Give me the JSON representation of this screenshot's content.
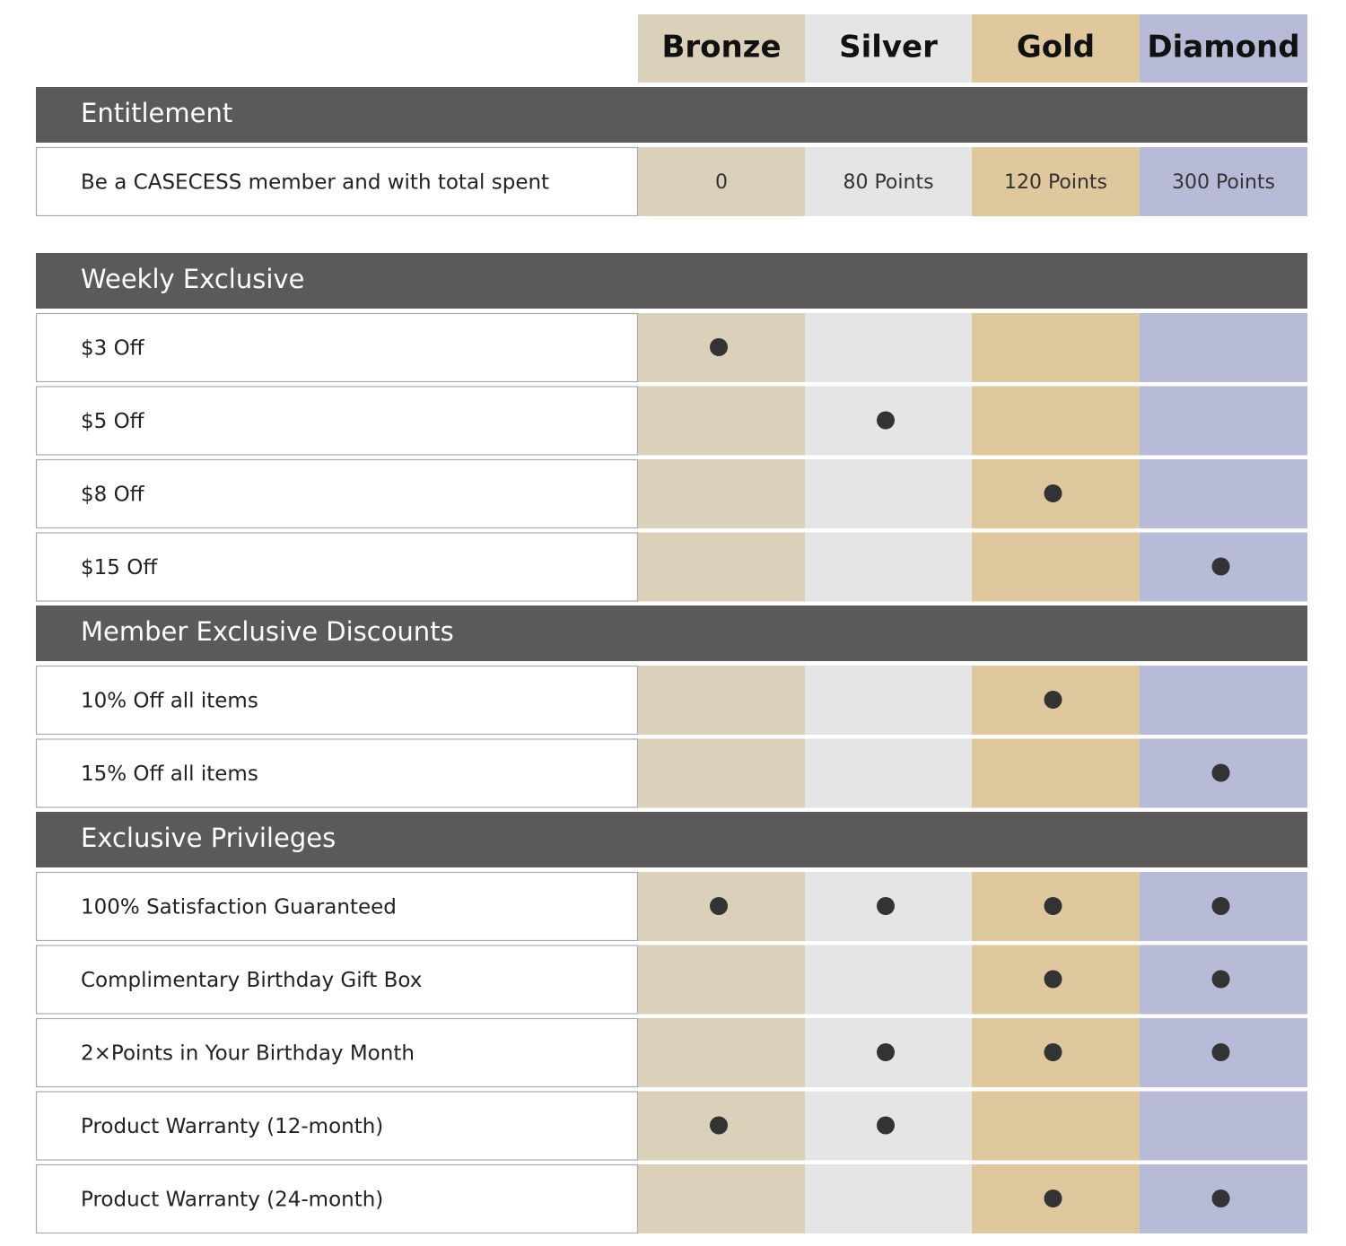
{
  "tiers": [
    "Bronze",
    "Silver",
    "Gold",
    "Diamond"
  ],
  "sections": [
    {
      "title": "Entitlement",
      "rows": [
        {
          "label": "Be a CASECESS member and with total spent",
          "cells": [
            "0",
            "80 Points",
            "120 Points",
            "300 Points"
          ]
        }
      ]
    },
    {
      "title": "Weekly Exclusive",
      "rows": [
        {
          "label": "$3 Off",
          "tiers": [
            true,
            false,
            false,
            false
          ]
        },
        {
          "label": "$5 Off",
          "tiers": [
            false,
            true,
            false,
            false
          ]
        },
        {
          "label": "$8 Off",
          "tiers": [
            false,
            false,
            true,
            false
          ]
        },
        {
          "label": "$15 Off",
          "tiers": [
            false,
            false,
            false,
            true
          ]
        }
      ]
    },
    {
      "title": "Member Exclusive Discounts",
      "rows": [
        {
          "label": "10% Off all items",
          "tiers": [
            false,
            false,
            true,
            false
          ]
        },
        {
          "label": "15% Off all items",
          "tiers": [
            false,
            false,
            false,
            true
          ]
        }
      ]
    },
    {
      "title": "Exclusive Privileges",
      "rows": [
        {
          "label": "100% Satisfaction Guaranteed",
          "tiers": [
            true,
            true,
            true,
            true
          ]
        },
        {
          "label": "Complimentary Birthday Gift Box",
          "tiers": [
            false,
            false,
            true,
            true
          ]
        },
        {
          "label": "2×Points in Your Birthday Month",
          "tiers": [
            false,
            true,
            true,
            true
          ]
        },
        {
          "label": "Product Warranty (12-month)",
          "tiers": [
            true,
            true,
            false,
            false
          ]
        },
        {
          "label": "Product Warranty (24-month)",
          "tiers": [
            false,
            false,
            true,
            true
          ]
        }
      ]
    }
  ]
}
